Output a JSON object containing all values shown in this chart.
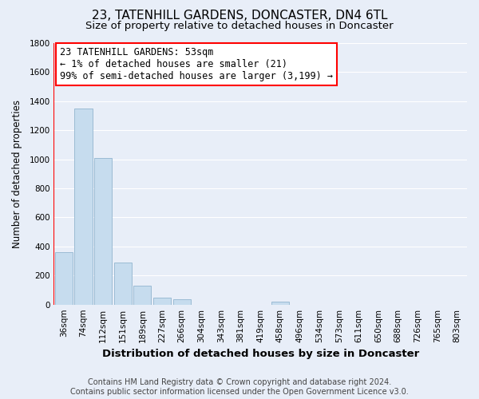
{
  "title": "23, TATENHILL GARDENS, DONCASTER, DN4 6TL",
  "subtitle": "Size of property relative to detached houses in Doncaster",
  "xlabel": "Distribution of detached houses by size in Doncaster",
  "ylabel": "Number of detached properties",
  "bar_labels": [
    "36sqm",
    "74sqm",
    "112sqm",
    "151sqm",
    "189sqm",
    "227sqm",
    "266sqm",
    "304sqm",
    "343sqm",
    "381sqm",
    "419sqm",
    "458sqm",
    "496sqm",
    "534sqm",
    "573sqm",
    "611sqm",
    "650sqm",
    "688sqm",
    "726sqm",
    "765sqm",
    "803sqm"
  ],
  "bar_values": [
    360,
    1350,
    1010,
    290,
    130,
    45,
    35,
    0,
    0,
    0,
    0,
    20,
    0,
    0,
    0,
    0,
    0,
    0,
    0,
    0,
    0
  ],
  "bar_color": "#c6dcee",
  "bar_edge_color": "#9bbbd4",
  "ylim": [
    0,
    1800
  ],
  "yticks": [
    0,
    200,
    400,
    600,
    800,
    1000,
    1200,
    1400,
    1600,
    1800
  ],
  "annotation_box_text": "23 TATENHILL GARDENS: 53sqm\n← 1% of detached houses are smaller (21)\n99% of semi-detached houses are larger (3,199) →",
  "footer_line1": "Contains HM Land Registry data © Crown copyright and database right 2024.",
  "footer_line2": "Contains public sector information licensed under the Open Government Licence v3.0.",
  "bg_color": "#e8eef8",
  "grid_color": "#ffffff",
  "title_fontsize": 11,
  "subtitle_fontsize": 9.5,
  "xlabel_fontsize": 9.5,
  "ylabel_fontsize": 8.5,
  "annot_fontsize": 8.5,
  "tick_fontsize": 7.5,
  "footer_fontsize": 7
}
